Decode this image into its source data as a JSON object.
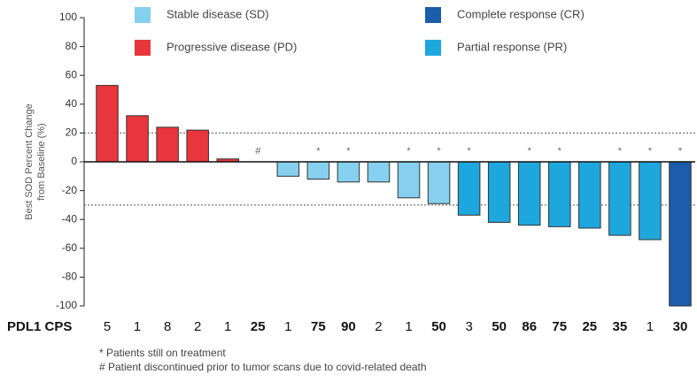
{
  "chart_data": {
    "type": "bar",
    "ylabel": [
      "Best SOD Percent Change",
      "from Baseline (%)"
    ],
    "row_label": "PDL1 CPS",
    "categories": [
      "5",
      "1",
      "8",
      "2",
      "1",
      "25",
      "1",
      "75",
      "90",
      "2",
      "1",
      "50",
      "3",
      "50",
      "86",
      "75",
      "25",
      "35",
      "1",
      "30"
    ],
    "bold": [
      false,
      false,
      false,
      false,
      false,
      true,
      false,
      true,
      true,
      false,
      false,
      true,
      false,
      true,
      true,
      true,
      true,
      true,
      false,
      true
    ],
    "markers": [
      null,
      null,
      null,
      null,
      null,
      "#",
      null,
      "*",
      "*",
      null,
      "*",
      "*",
      "*",
      null,
      "*",
      "*",
      null,
      "*",
      "*",
      "*"
    ],
    "series": [
      {
        "name": "Stable disease (SD)",
        "color": "#86cfee",
        "values": [
          null,
          null,
          null,
          null,
          null,
          null,
          -10,
          -12,
          -14,
          -14,
          -25,
          -29,
          null,
          null,
          null,
          null,
          null,
          null,
          null,
          null
        ]
      },
      {
        "name": "Progressive disease (PD)",
        "color": "#e8363c",
        "values": [
          53,
          32,
          24,
          22,
          2,
          null,
          null,
          null,
          null,
          null,
          null,
          null,
          null,
          null,
          null,
          null,
          null,
          null,
          null,
          null
        ]
      },
      {
        "name": "Complete response (CR)",
        "color": "#1b5cab",
        "values": [
          null,
          null,
          null,
          null,
          null,
          null,
          null,
          null,
          null,
          null,
          null,
          null,
          null,
          null,
          null,
          null,
          null,
          null,
          null,
          -100
        ]
      },
      {
        "name": "Partial response (PR)",
        "color": "#1ea7dd",
        "values": [
          null,
          null,
          null,
          null,
          null,
          null,
          null,
          null,
          null,
          null,
          null,
          null,
          -37,
          -42,
          -44,
          -45,
          -46,
          -51,
          -54,
          null
        ]
      }
    ],
    "reference_lines": [
      20,
      -30
    ],
    "ylim": [
      -100,
      100
    ],
    "yticks": [
      -100,
      -80,
      -60,
      -40,
      -20,
      0,
      20,
      40,
      60,
      80,
      100
    ],
    "footnotes": [
      "* Patients still on treatment",
      "# Patient discontinued prior to tumor scans due to covid-related death"
    ]
  }
}
